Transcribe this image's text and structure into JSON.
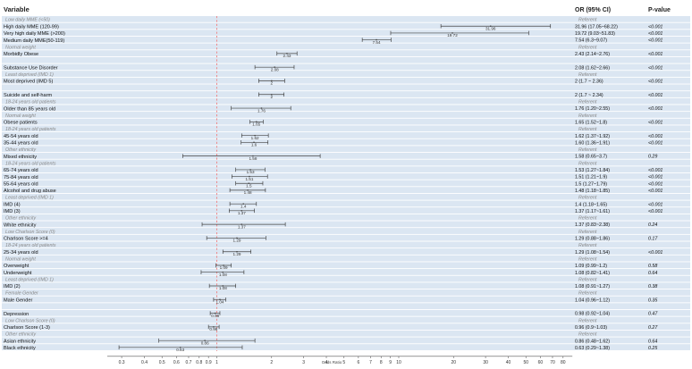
{
  "headers": {
    "variable": "Variable",
    "or": "OR (95% CI)",
    "p": "P-value"
  },
  "axis": {
    "xlabel": "Odds Ratio"
  },
  "colors": {
    "band": "#dbe6f2",
    "separator": "#ffffff",
    "ref_line": "#f08080",
    "ci": "#444444",
    "header_text": "#222222",
    "reference_text": "#8a8a8a",
    "axis": "#555555"
  },
  "chart_data": {
    "type": "forest",
    "xlabel": "Odds Ratio",
    "x_scale": "log",
    "xlim": [
      0.25,
      90
    ],
    "reference_line": 1,
    "grid": false,
    "ticks": [
      0.3,
      0.4,
      0.5,
      0.6,
      0.7,
      0.8,
      0.9,
      1,
      2,
      3,
      4,
      5,
      6,
      7,
      8,
      9,
      10,
      20,
      30,
      40,
      50,
      60,
      70,
      80
    ],
    "rows": [
      {
        "label": "Low daily MME (<50)",
        "ref": true,
        "text": "Referent"
      },
      {
        "label": "High daily MME (120-99)",
        "or": 31.96,
        "lo": 17.05,
        "hi": 68.22,
        "ci_text": "31.96 (17.05~68.22)",
        "p": "<0.001",
        "value_label": "31.96"
      },
      {
        "label": "Very high daily MME (>200)",
        "or": 19.72,
        "lo": 9.03,
        "hi": 51.83,
        "ci_text": "19.72 (9.03~51.83)",
        "p": "<0.001",
        "value_label": "19.72"
      },
      {
        "label": "Medium daily MME(50-119)",
        "or": 7.54,
        "lo": 6.3,
        "hi": 9.07,
        "ci_text": "7.54 (6.3~9.07)",
        "p": "<0.001",
        "value_label": "7.54"
      },
      {
        "label": "Normal weight",
        "ref": true,
        "text": "Referent"
      },
      {
        "label": "Morbidly Obese",
        "or": 2.43,
        "lo": 2.14,
        "hi": 2.76,
        "ci_text": "2.43 (2.14~2.76)",
        "p": "<0.001",
        "value_label": "2.43"
      },
      {
        "label": "",
        "blank": true
      },
      {
        "label": "Substance Use Disorder",
        "or": 2.08,
        "lo": 1.62,
        "hi": 2.66,
        "ci_text": "2.08 (1.62~2.66)",
        "p": "<0.001",
        "value_label": "2.08"
      },
      {
        "label": "Least deprived (IMD 1)",
        "ref": true,
        "text": "Referent"
      },
      {
        "label": "Most deprived (IMD 5)",
        "or": 2,
        "lo": 1.7,
        "hi": 2.36,
        "ci_text": "2 (1.7 ~ 2.36)",
        "p": "<0.001",
        "value_label": "2"
      },
      {
        "label": "",
        "blank": true
      },
      {
        "label": "Suicide and self-harm",
        "or": 2,
        "lo": 1.7,
        "hi": 2.34,
        "ci_text": "2 (1.7 ~ 2.34)",
        "p": "<0.001",
        "value_label": "2"
      },
      {
        "label": "18-24 years old patients",
        "ref": true,
        "text": "Referent"
      },
      {
        "label": "Older than 85 years old",
        "or": 1.76,
        "lo": 1.2,
        "hi": 2.55,
        "ci_text": "1.76 (1.20~2.55)",
        "p": "<0.001",
        "value_label": "1.76"
      },
      {
        "label": "Normal weight",
        "ref": true,
        "text": "Referent"
      },
      {
        "label": "Obese patients",
        "or": 1.65,
        "lo": 1.52,
        "hi": 1.8,
        "ci_text": "1.65 (1.52~1.8)",
        "p": "<0.001",
        "value_label": "1.65"
      },
      {
        "label": "18-24 years old patients",
        "ref": true,
        "text": "Referent"
      },
      {
        "label": "45-54 years old",
        "or": 1.62,
        "lo": 1.37,
        "hi": 1.92,
        "ci_text": "1.62 (1.37~1.92)",
        "p": "<0.001",
        "value_label": "1.62"
      },
      {
        "label": "35-44 years old",
        "or": 1.6,
        "lo": 1.36,
        "hi": 1.91,
        "ci_text": "1.60 (1.36~1.91)",
        "p": "<0.001",
        "value_label": "1.6"
      },
      {
        "label": "Other ethnicity",
        "ref": true,
        "text": "Referent"
      },
      {
        "label": "Mixed ethnicity",
        "or": 1.58,
        "lo": 0.65,
        "hi": 3.7,
        "ci_text": "1.58 (0.65~3.7)",
        "p": "0.29",
        "value_label": "1.58"
      },
      {
        "label": "18-24 years old patients",
        "ref": true,
        "text": "Referent"
      },
      {
        "label": "65-74 years old",
        "or": 1.53,
        "lo": 1.27,
        "hi": 1.84,
        "ci_text": "1.53 (1.27~1.84)",
        "p": "<0.001",
        "value_label": "1.53"
      },
      {
        "label": "75-84 years old",
        "or": 1.51,
        "lo": 1.21,
        "hi": 1.9,
        "ci_text": "1.51 (1.21~1.9)",
        "p": "<0.001",
        "value_label": "1.51"
      },
      {
        "label": "55-64 years old",
        "or": 1.5,
        "lo": 1.27,
        "hi": 1.79,
        "ci_text": "1.5 (1.27~1.79)",
        "p": "<0.001",
        "value_label": "1.5"
      },
      {
        "label": "Alcohol and drug abuse",
        "or": 1.48,
        "lo": 1.18,
        "hi": 1.85,
        "ci_text": "1.48 (1.18~1.85)",
        "p": "<0.001",
        "value_label": "1.48"
      },
      {
        "label": "Least deprived (IMD 1)",
        "ref": true,
        "text": "Referent"
      },
      {
        "label": "IMD (4)",
        "or": 1.4,
        "lo": 1.18,
        "hi": 1.65,
        "ci_text": "1.4 (1.18~1.65)",
        "p": "<0.001",
        "value_label": "1.4"
      },
      {
        "label": "IMD (3)",
        "or": 1.37,
        "lo": 1.17,
        "hi": 1.61,
        "ci_text": "1.37 (1.17~1.61)",
        "p": "<0.001",
        "value_label": "1.37"
      },
      {
        "label": "Other ethnicity",
        "ref": true,
        "text": "Referent"
      },
      {
        "label": "White ethnicity",
        "or": 1.37,
        "lo": 0.83,
        "hi": 2.38,
        "ci_text": "1.37 (0.83~2.38)",
        "p": "0.24",
        "value_label": "1.37"
      },
      {
        "label": "Low Charlson Score (0)",
        "ref": true,
        "text": "Referent"
      },
      {
        "label": "Charlson Score >=4",
        "or": 1.29,
        "lo": 0.88,
        "hi": 1.86,
        "ci_text": "1.29 (0.88~1.86)",
        "p": "0.17",
        "value_label": "1.29"
      },
      {
        "label": "18-24 years old patients",
        "ref": true,
        "text": "Referent"
      },
      {
        "label": "25-34 years old",
        "or": 1.29,
        "lo": 1.08,
        "hi": 1.54,
        "ci_text": "1.29 (1.08~1.54)",
        "p": "<0.001",
        "value_label": "1.29"
      },
      {
        "label": "Normal weight",
        "ref": true,
        "text": "Referent"
      },
      {
        "label": "Overweight",
        "or": 1.09,
        "lo": 0.99,
        "hi": 1.2,
        "ci_text": "1.09 (0.99~1.2)",
        "p": "0.58",
        "value_label": "1.09"
      },
      {
        "label": "Underweight",
        "or": 1.08,
        "lo": 0.82,
        "hi": 1.41,
        "ci_text": "1.08 (0.82~1.41)",
        "p": "0.64",
        "value_label": "1.08"
      },
      {
        "label": "Least deprived (IMD 1)",
        "ref": true,
        "text": "Referent"
      },
      {
        "label": "IMD (2)",
        "or": 1.08,
        "lo": 0.91,
        "hi": 1.27,
        "ci_text": "1.08 (0.91~1.27)",
        "p": "0.38",
        "value_label": "1.08"
      },
      {
        "label": "Female Gender",
        "ref": true,
        "text": "Referent"
      },
      {
        "label": "Male Gender",
        "or": 1.04,
        "lo": 0.96,
        "hi": 1.12,
        "ci_text": "1.04 (0.96~1.12)",
        "p": "0.35",
        "value_label": "1.04"
      },
      {
        "label": "",
        "blank": true
      },
      {
        "label": "Depression",
        "or": 0.98,
        "lo": 0.92,
        "hi": 1.04,
        "ci_text": "0.98 (0.92~1.04)",
        "p": "0.47",
        "value_label": "0.98"
      },
      {
        "label": "Low Charlson Score (0)",
        "ref": true,
        "text": "Referent"
      },
      {
        "label": "Charlson Score (1-3)",
        "or": 0.96,
        "lo": 0.9,
        "hi": 1.03,
        "ci_text": "0.96 (0.9~1.03)",
        "p": "0.27",
        "value_label": "0.96"
      },
      {
        "label": "Other ethnicity",
        "ref": true,
        "text": "Referent"
      },
      {
        "label": "Asian ethnicity",
        "or": 0.86,
        "lo": 0.48,
        "hi": 1.62,
        "ci_text": "0.86 (0.48~1.62)",
        "p": "0.64",
        "value_label": "0.86"
      },
      {
        "label": "Black ethnicity",
        "or": 0.63,
        "lo": 0.29,
        "hi": 1.38,
        "ci_text": "0.63 (0.29~1.38)",
        "p": "0.25",
        "value_label": "0.63"
      }
    ]
  }
}
